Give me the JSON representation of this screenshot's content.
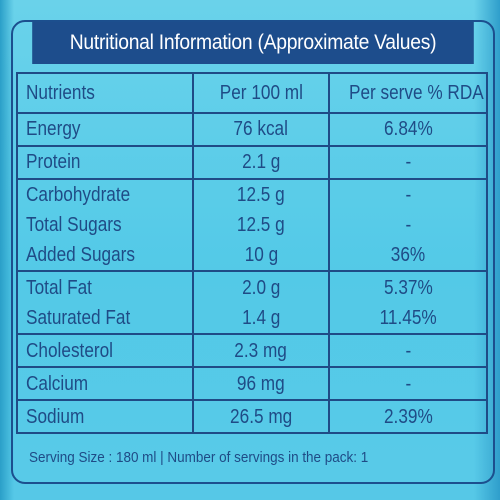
{
  "title": "Nutritional Information (Approximate Values)",
  "columns": [
    "Nutrients",
    "Per 100 ml",
    "Per serve % RDA"
  ],
  "rows": [
    {
      "nutrient": "Energy",
      "per_100ml": "76 kcal",
      "rda": "6.84%"
    },
    {
      "nutrient": "Protein",
      "per_100ml": "2.1 g",
      "rda": "-"
    },
    {
      "nutrient": "Carbohydrate",
      "per_100ml": "12.5 g",
      "rda": "-"
    },
    {
      "nutrient": "Total Sugars",
      "per_100ml": "12.5 g",
      "rda": "-"
    },
    {
      "nutrient": "Added Sugars",
      "per_100ml": "10 g",
      "rda": "36%"
    },
    {
      "nutrient": "Total Fat",
      "per_100ml": "2.0 g",
      "rda": "5.37%"
    },
    {
      "nutrient": "Saturated Fat",
      "per_100ml": "1.4 g",
      "rda": "11.45%"
    },
    {
      "nutrient": "Cholesterol",
      "per_100ml": "2.3 mg",
      "rda": "-"
    },
    {
      "nutrient": "Calcium",
      "per_100ml": "96 mg",
      "rda": "-"
    },
    {
      "nutrient": "Sodium",
      "per_100ml": "26.5 mg",
      "rda": "2.39%"
    }
  ],
  "footer": "Serving  Size : 180 ml | Number of servings in the pack:  1",
  "colors": {
    "header_bg": "#1d4d8c",
    "text": "#1f4b86",
    "background": "#55c8e6"
  }
}
